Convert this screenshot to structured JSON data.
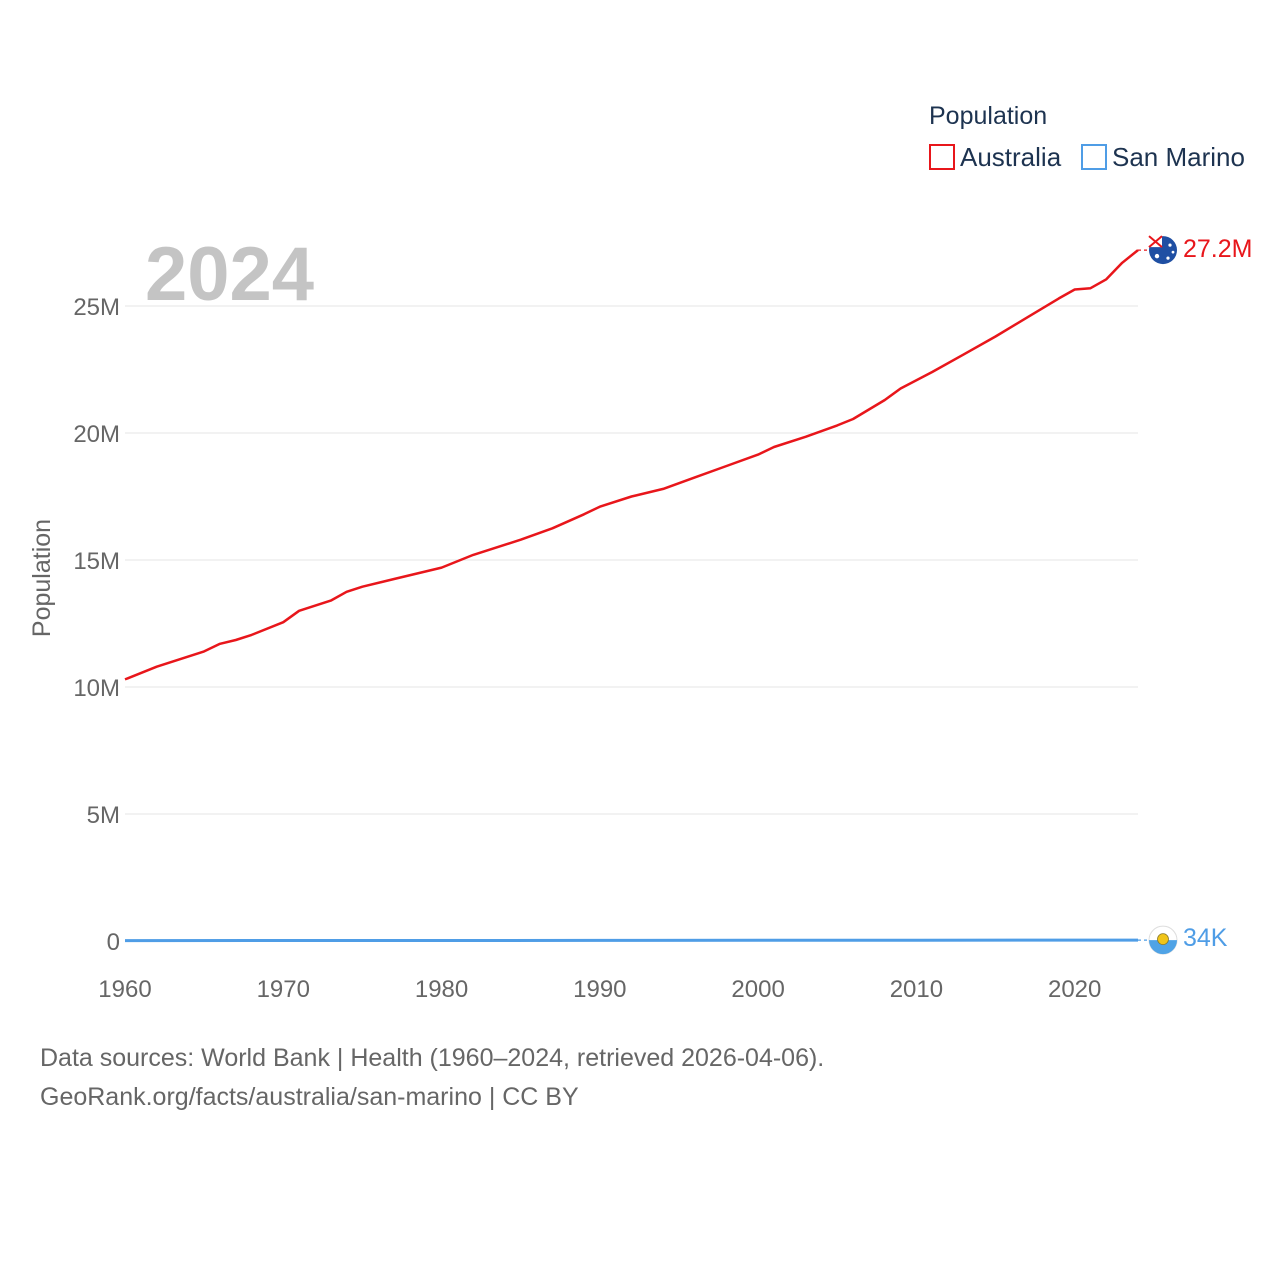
{
  "chart_data": {
    "type": "line",
    "title": "Population",
    "year_label": "2024",
    "ylabel": "Population",
    "xlabel": "",
    "xlim": [
      1960,
      2024
    ],
    "ylim": [
      0,
      27200000
    ],
    "x_ticks": [
      {
        "value": 1960,
        "label": "1960"
      },
      {
        "value": 1970,
        "label": "1970"
      },
      {
        "value": 1980,
        "label": "1980"
      },
      {
        "value": 1990,
        "label": "1990"
      },
      {
        "value": 2000,
        "label": "2000"
      },
      {
        "value": 2010,
        "label": "2010"
      },
      {
        "value": 2020,
        "label": "2020"
      }
    ],
    "y_ticks": [
      {
        "value": 0,
        "label": "0"
      },
      {
        "value": 5000000,
        "label": "5M"
      },
      {
        "value": 10000000,
        "label": "10M"
      },
      {
        "value": 15000000,
        "label": "15M"
      },
      {
        "value": 20000000,
        "label": "20M"
      },
      {
        "value": 25000000,
        "label": "25M"
      }
    ],
    "grid": true,
    "legend": {
      "title": "Population",
      "position": "top-right"
    },
    "series": [
      {
        "name": "Australia",
        "color": "#e8161b",
        "end_label": "27.2M",
        "flag_icon": "australia-flag-icon",
        "x": [
          1960,
          1962,
          1965,
          1966,
          1967,
          1968,
          1970,
          1971,
          1973,
          1974,
          1975,
          1977,
          1980,
          1982,
          1985,
          1987,
          1989,
          1990,
          1992,
          1994,
          1996,
          1998,
          2000,
          2001,
          2003,
          2005,
          2006,
          2008,
          2009,
          2011,
          2013,
          2015,
          2017,
          2019,
          2020,
          2021,
          2022,
          2023,
          2024
        ],
        "values": [
          10300000,
          10800000,
          11400000,
          11700000,
          11850000,
          12050000,
          12550000,
          13000000,
          13400000,
          13750000,
          13950000,
          14250000,
          14700000,
          15200000,
          15800000,
          16250000,
          16800000,
          17100000,
          17500000,
          17800000,
          18250000,
          18700000,
          19150000,
          19450000,
          19850000,
          20300000,
          20550000,
          21300000,
          21750000,
          22400000,
          23100000,
          23800000,
          24550000,
          25300000,
          25650000,
          25700000,
          26050000,
          26700000,
          27200000
        ]
      },
      {
        "name": "San Marino",
        "color": "#4f9de6",
        "end_label": "34K",
        "flag_icon": "san-marino-flag-icon",
        "x": [
          1960,
          1970,
          1980,
          1990,
          2000,
          2010,
          2018,
          2020,
          2022,
          2024
        ],
        "values": [
          15400,
          18800,
          21300,
          23100,
          26800,
          31600,
          33800,
          34000,
          33700,
          34000
        ]
      }
    ]
  },
  "footer": {
    "line1": "Data sources: World Bank | Health (1960–2024, retrieved 2026-04-06).",
    "line2": "GeoRank.org/facts/australia/san-marino | CC BY"
  }
}
